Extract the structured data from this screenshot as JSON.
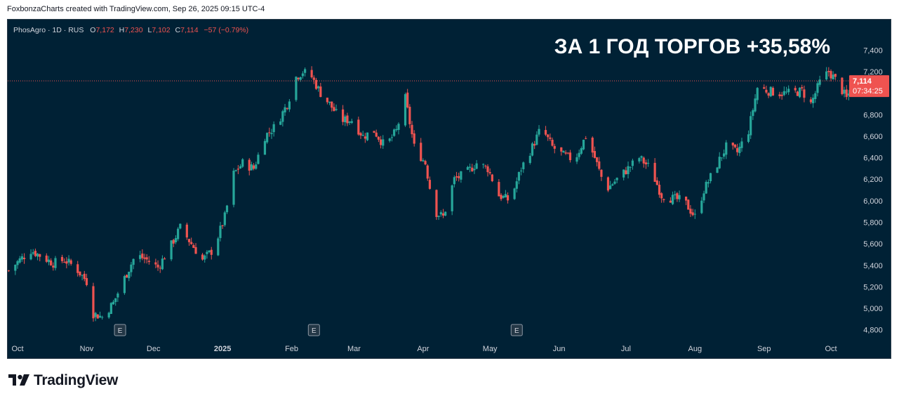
{
  "caption": "FoxbonzaCharts created with TradingView.com, Sep 26, 2025 09:15 UTC-4",
  "brand": "TradingView",
  "logo_icon": "tradingview-logo-icon",
  "colors": {
    "background": "#002135",
    "up": "#26a69a",
    "down": "#ef5350",
    "axis_text": "#d1d4dc",
    "price_badge": "#ef5350"
  },
  "chart_data": {
    "type": "candlestick",
    "header": {
      "symbol": "PhosAgro · 1D · RUS",
      "o_label": "O",
      "o": "7,172",
      "h_label": "H",
      "h": "7,230",
      "l_label": "L",
      "l": "7,102",
      "c_label": "C",
      "c": "7,114",
      "change": "−57 (−0.79%)"
    },
    "annotation": "ЗА 1 ГОД ТОРГОВ +35,58%",
    "last_price_label": "7,114",
    "countdown_label": "07:34:25",
    "last_price": 7114,
    "ylim": [
      4700,
      7500
    ],
    "y_ticks": [
      {
        "value": 7400,
        "label": "7,400"
      },
      {
        "value": 7200,
        "label": "7,200"
      },
      {
        "value": 6800,
        "label": "6,800"
      },
      {
        "value": 6600,
        "label": "6,600"
      },
      {
        "value": 6400,
        "label": "6,400"
      },
      {
        "value": 6200,
        "label": "6,200"
      },
      {
        "value": 6000,
        "label": "6,000"
      },
      {
        "value": 5800,
        "label": "5,800"
      },
      {
        "value": 5600,
        "label": "5,600"
      },
      {
        "value": 5400,
        "label": "5,400"
      },
      {
        "value": 5200,
        "label": "5,200"
      },
      {
        "value": 5000,
        "label": "5,000"
      },
      {
        "value": 4800,
        "label": "4,800"
      }
    ],
    "x_ticks": [
      {
        "date": "2024-10-01",
        "label": "Oct"
      },
      {
        "date": "2024-11-01",
        "label": "Nov"
      },
      {
        "date": "2024-12-01",
        "label": "Dec"
      },
      {
        "date": "2025-01-01",
        "label": "2025"
      },
      {
        "date": "2025-02-01",
        "label": "Feb"
      },
      {
        "date": "2025-03-01",
        "label": "Mar"
      },
      {
        "date": "2025-04-01",
        "label": "Apr"
      },
      {
        "date": "2025-05-01",
        "label": "May"
      },
      {
        "date": "2025-06-01",
        "label": "Jun"
      },
      {
        "date": "2025-07-01",
        "label": "Jul"
      },
      {
        "date": "2025-08-01",
        "label": "Aug"
      },
      {
        "date": "2025-09-01",
        "label": "Sep"
      },
      {
        "date": "2025-10-01",
        "label": "Oct"
      }
    ],
    "x_range": [
      "2024-10-01",
      "2025-10-01"
    ],
    "events": [
      {
        "date": "2024-11-16",
        "label": "E"
      },
      {
        "date": "2025-02-11",
        "label": "E"
      },
      {
        "date": "2025-05-13",
        "label": "E"
      }
    ],
    "close_series": [
      [
        "2024-09-27",
        5350
      ],
      [
        "2024-10-02",
        5450
      ],
      [
        "2024-10-07",
        5540
      ],
      [
        "2024-10-12",
        5480
      ],
      [
        "2024-10-17",
        5420
      ],
      [
        "2024-10-22",
        5450
      ],
      [
        "2024-10-27",
        5380
      ],
      [
        "2024-11-01",
        5250
      ],
      [
        "2024-11-04",
        4950
      ],
      [
        "2024-11-08",
        4920
      ],
      [
        "2024-11-13",
        5050
      ],
      [
        "2024-11-18",
        5280
      ],
      [
        "2024-11-23",
        5500
      ],
      [
        "2024-11-28",
        5450
      ],
      [
        "2024-12-03",
        5380
      ],
      [
        "2024-12-08",
        5550
      ],
      [
        "2024-12-13",
        5750
      ],
      [
        "2024-12-18",
        5600
      ],
      [
        "2024-12-23",
        5450
      ],
      [
        "2024-12-28",
        5550
      ],
      [
        "2025-01-02",
        5850
      ],
      [
        "2025-01-06",
        6250
      ],
      [
        "2025-01-10",
        6350
      ],
      [
        "2025-01-15",
        6300
      ],
      [
        "2025-01-20",
        6600
      ],
      [
        "2025-01-25",
        6700
      ],
      [
        "2025-01-30",
        6900
      ],
      [
        "2025-02-03",
        7150
      ],
      [
        "2025-02-06",
        7200
      ],
      [
        "2025-02-10",
        7150
      ],
      [
        "2025-02-14",
        7000
      ],
      [
        "2025-02-18",
        6900
      ],
      [
        "2025-02-23",
        6750
      ],
      [
        "2025-02-28",
        6750
      ],
      [
        "2025-03-05",
        6600
      ],
      [
        "2025-03-10",
        6650
      ],
      [
        "2025-03-15",
        6500
      ],
      [
        "2025-03-20",
        6650
      ],
      [
        "2025-03-24",
        6950
      ],
      [
        "2025-03-28",
        6500
      ],
      [
        "2025-04-02",
        6350
      ],
      [
        "2025-04-06",
        5900
      ],
      [
        "2025-04-10",
        5850
      ],
      [
        "2025-04-15",
        6200
      ],
      [
        "2025-04-20",
        6250
      ],
      [
        "2025-04-25",
        6350
      ],
      [
        "2025-04-30",
        6300
      ],
      [
        "2025-05-05",
        6050
      ],
      [
        "2025-05-10",
        6000
      ],
      [
        "2025-05-15",
        6300
      ],
      [
        "2025-05-20",
        6500
      ],
      [
        "2025-05-24",
        6680
      ],
      [
        "2025-05-29",
        6500
      ],
      [
        "2025-06-03",
        6420
      ],
      [
        "2025-06-08",
        6380
      ],
      [
        "2025-06-13",
        6600
      ],
      [
        "2025-06-17",
        6400
      ],
      [
        "2025-06-22",
        6100
      ],
      [
        "2025-06-27",
        6200
      ],
      [
        "2025-07-02",
        6300
      ],
      [
        "2025-07-07",
        6400
      ],
      [
        "2025-07-12",
        6300
      ],
      [
        "2025-07-17",
        6050
      ],
      [
        "2025-07-22",
        6020
      ],
      [
        "2025-07-27",
        6000
      ],
      [
        "2025-08-01",
        5850
      ],
      [
        "2025-08-05",
        6100
      ],
      [
        "2025-08-10",
        6300
      ],
      [
        "2025-08-15",
        6500
      ],
      [
        "2025-08-20",
        6450
      ],
      [
        "2025-08-25",
        6650
      ],
      [
        "2025-08-29",
        7050
      ],
      [
        "2025-09-03",
        7020
      ],
      [
        "2025-09-08",
        7000
      ],
      [
        "2025-09-13",
        7000
      ],
      [
        "2025-09-18",
        7020
      ],
      [
        "2025-09-22",
        6900
      ],
      [
        "2025-09-26",
        7100
      ],
      [
        "2025-09-30",
        7200
      ],
      [
        "2025-10-04",
        7100
      ],
      [
        "2025-10-08",
        6950
      ],
      [
        "2025-10-12",
        7114
      ]
    ]
  }
}
